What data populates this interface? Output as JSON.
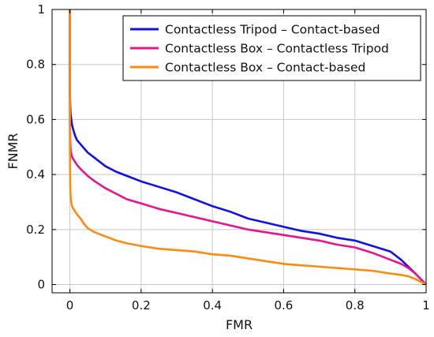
{
  "chart_data": {
    "type": "line",
    "xlabel": "FMR",
    "ylabel": "FNMR",
    "xlim": [
      -0.05,
      1.0
    ],
    "ylim": [
      -0.03,
      1.0
    ],
    "grid": true,
    "legend_position": "top-right",
    "x_ticks": [
      "0",
      "0.2",
      "0.4",
      "0.6",
      "0.8",
      "1"
    ],
    "y_ticks": [
      "0",
      "0.2",
      "0.4",
      "0.6",
      "0.8",
      "1"
    ],
    "series": [
      {
        "name": "Contactless Tripod – Contact-based",
        "color": "#1010e8",
        "x": [
          0.0,
          0.0,
          0.0,
          0.001,
          0.002,
          0.004,
          0.006,
          0.01,
          0.015,
          0.02,
          0.03,
          0.05,
          0.07,
          0.1,
          0.13,
          0.16,
          0.2,
          0.25,
          0.3,
          0.35,
          0.4,
          0.45,
          0.5,
          0.55,
          0.6,
          0.65,
          0.7,
          0.75,
          0.8,
          0.85,
          0.9,
          0.93,
          0.95,
          0.97,
          1.0
        ],
        "y": [
          1.0,
          0.9,
          0.7,
          0.65,
          0.62,
          0.6,
          0.58,
          0.56,
          0.54,
          0.525,
          0.51,
          0.48,
          0.46,
          0.43,
          0.41,
          0.395,
          0.375,
          0.355,
          0.335,
          0.31,
          0.285,
          0.265,
          0.24,
          0.225,
          0.21,
          0.195,
          0.185,
          0.17,
          0.16,
          0.14,
          0.12,
          0.09,
          0.065,
          0.04,
          0.0
        ]
      },
      {
        "name": "Contactless Box – Contactless Tripod",
        "color": "#e8148c",
        "x": [
          0.0,
          0.0,
          0.0,
          0.001,
          0.002,
          0.004,
          0.006,
          0.01,
          0.015,
          0.02,
          0.03,
          0.05,
          0.07,
          0.1,
          0.13,
          0.16,
          0.2,
          0.25,
          0.3,
          0.35,
          0.4,
          0.45,
          0.5,
          0.55,
          0.6,
          0.65,
          0.7,
          0.75,
          0.8,
          0.85,
          0.9,
          0.93,
          0.95,
          0.97,
          1.0
        ],
        "y": [
          1.0,
          0.85,
          0.6,
          0.52,
          0.49,
          0.475,
          0.465,
          0.455,
          0.445,
          0.435,
          0.42,
          0.395,
          0.375,
          0.35,
          0.33,
          0.31,
          0.295,
          0.275,
          0.26,
          0.245,
          0.23,
          0.215,
          0.2,
          0.19,
          0.18,
          0.17,
          0.16,
          0.145,
          0.135,
          0.115,
          0.09,
          0.075,
          0.06,
          0.04,
          0.0
        ]
      },
      {
        "name": "Contactless Box – Contact-based",
        "color": "#ff8a10",
        "x": [
          0.0,
          0.0,
          0.0,
          0.001,
          0.002,
          0.004,
          0.006,
          0.01,
          0.015,
          0.02,
          0.03,
          0.04,
          0.05,
          0.07,
          0.1,
          0.13,
          0.16,
          0.2,
          0.25,
          0.3,
          0.35,
          0.4,
          0.45,
          0.5,
          0.55,
          0.6,
          0.65,
          0.7,
          0.75,
          0.8,
          0.85,
          0.9,
          0.93,
          0.95,
          0.97,
          1.0
        ],
        "y": [
          1.0,
          0.7,
          0.5,
          0.36,
          0.32,
          0.3,
          0.285,
          0.275,
          0.265,
          0.255,
          0.24,
          0.22,
          0.205,
          0.19,
          0.175,
          0.16,
          0.15,
          0.14,
          0.13,
          0.125,
          0.12,
          0.11,
          0.105,
          0.095,
          0.085,
          0.075,
          0.07,
          0.065,
          0.06,
          0.055,
          0.05,
          0.04,
          0.035,
          0.03,
          0.02,
          0.0
        ]
      }
    ]
  }
}
